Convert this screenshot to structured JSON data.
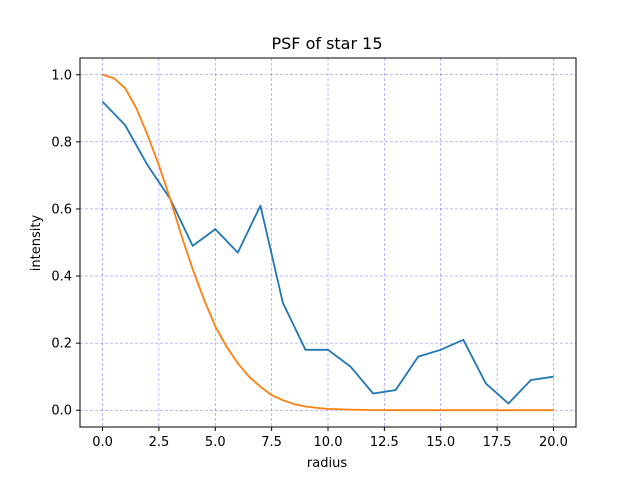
{
  "chart_data": {
    "type": "line",
    "title": "PSF of star 15",
    "xlabel": "radius",
    "ylabel": "intensity",
    "xlim": [
      -1,
      21
    ],
    "ylim": [
      -0.05,
      1.05
    ],
    "xticks": [
      0.0,
      2.5,
      5.0,
      7.5,
      10.0,
      12.5,
      15.0,
      17.5,
      20.0
    ],
    "xtick_labels": [
      "0.0",
      "2.5",
      "5.0",
      "7.5",
      "10.0",
      "12.5",
      "15.0",
      "17.5",
      "20.0"
    ],
    "yticks": [
      0.0,
      0.2,
      0.4,
      0.6,
      0.8,
      1.0
    ],
    "ytick_labels": [
      "0.0",
      "0.2",
      "0.4",
      "0.6",
      "0.8",
      "1.0"
    ],
    "grid": true,
    "grid_color": "#0000ff",
    "series": [
      {
        "color": "#1f77b4",
        "x": [
          0,
          1,
          2,
          3,
          4,
          5,
          6,
          7,
          8,
          9,
          10,
          11,
          12,
          13,
          14,
          15,
          16,
          17,
          18,
          19,
          20
        ],
        "y": [
          0.92,
          0.85,
          0.73,
          0.63,
          0.49,
          0.54,
          0.47,
          0.61,
          0.32,
          0.18,
          0.18,
          0.13,
          0.05,
          0.06,
          0.16,
          0.18,
          0.21,
          0.08,
          0.02,
          0.09,
          0.1
        ]
      },
      {
        "color": "#ff7f0e",
        "x": [
          0,
          0.5,
          1,
          1.5,
          2,
          2.5,
          3,
          3.5,
          4,
          4.5,
          5,
          5.5,
          6,
          6.5,
          7,
          7.5,
          8,
          8.5,
          9,
          9.5,
          10,
          11,
          12,
          13,
          14,
          15,
          16,
          17,
          18,
          19,
          20
        ],
        "y": [
          1.0,
          0.99,
          0.96,
          0.9,
          0.82,
          0.73,
          0.63,
          0.52,
          0.42,
          0.33,
          0.25,
          0.19,
          0.14,
          0.1,
          0.07,
          0.045,
          0.03,
          0.018,
          0.011,
          0.007,
          0.004,
          0.002,
          0.0005,
          0.0001,
          0.0,
          0.0,
          0.0,
          0.0,
          0.0,
          0.0,
          0.0
        ]
      }
    ]
  }
}
